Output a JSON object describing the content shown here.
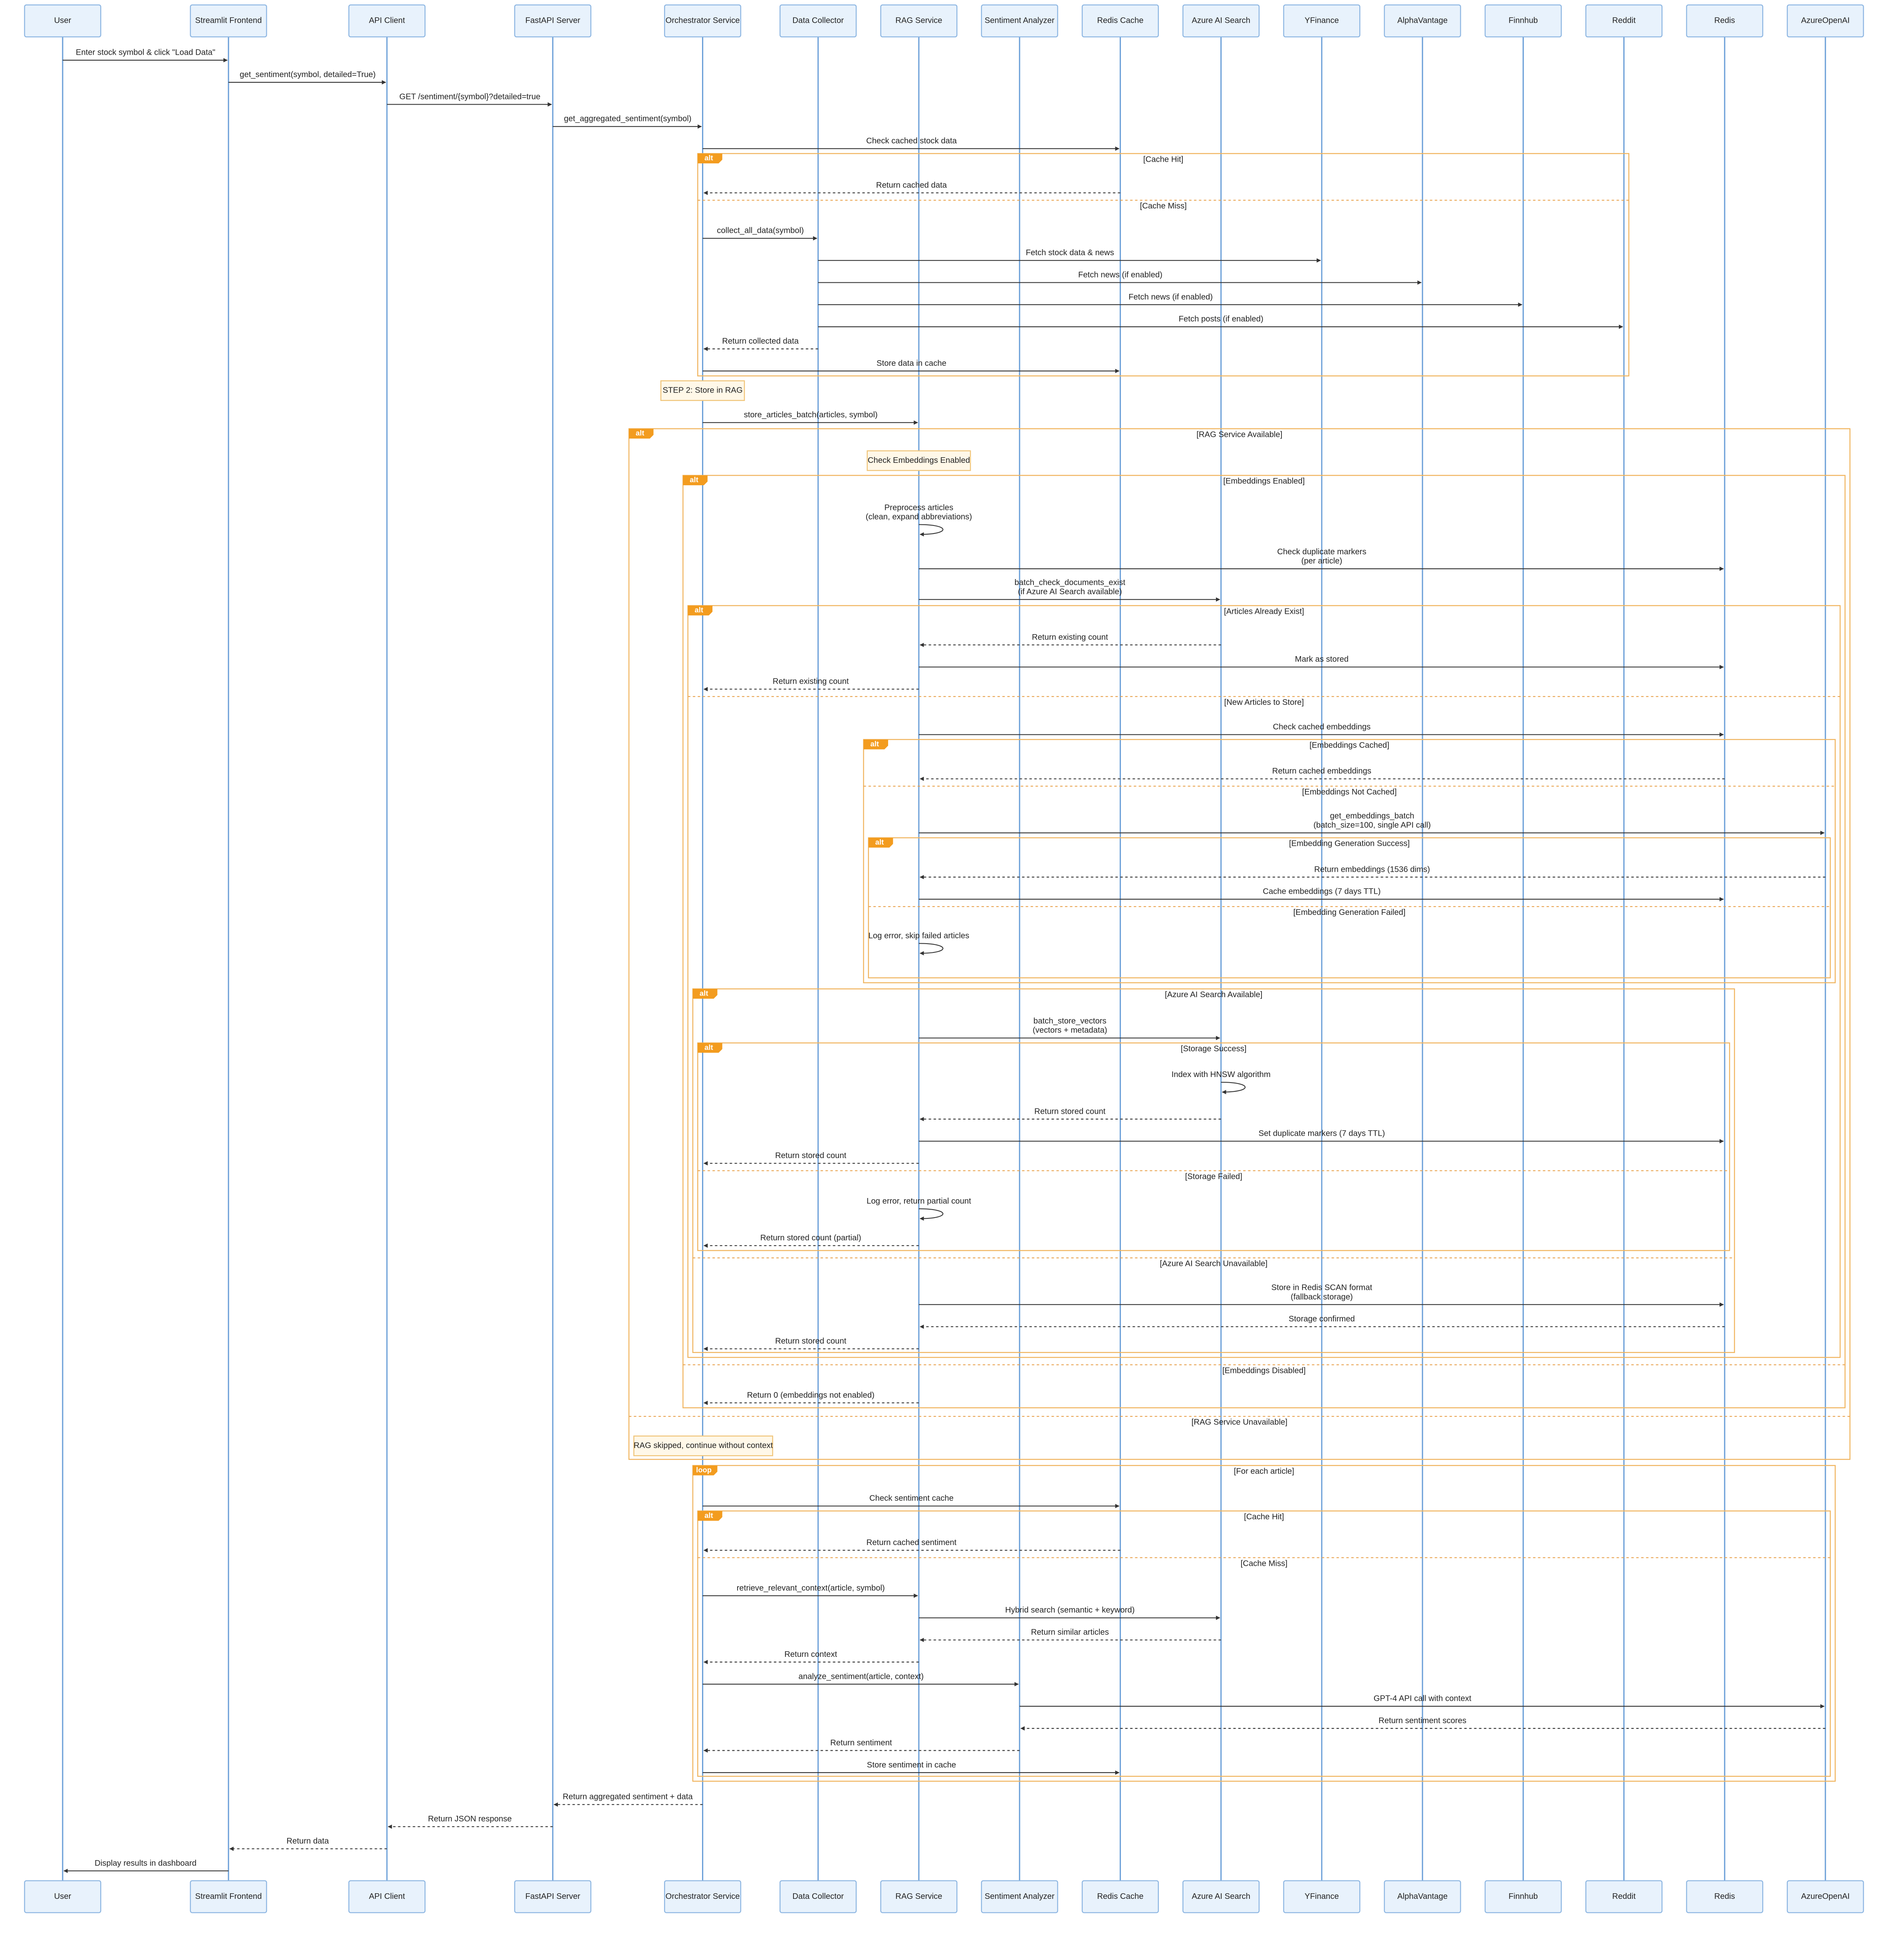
{
  "participants": [
    "User",
    "Streamlit Frontend",
    "API Client",
    "FastAPI Server",
    "Orchestrator Service",
    "Data Collector",
    "RAG Service",
    "Sentiment Analyzer",
    "Redis Cache",
    "Azure AI Search",
    "YFinance",
    "AlphaVantage",
    "Finnhub",
    "Reddit",
    "Redis",
    "AzureOpenAI"
  ],
  "messages": [
    {
      "lines": [
        "Enter stock symbol & click \"Load Data\""
      ]
    },
    {
      "lines": [
        "get_sentiment(symbol, detailed=True)"
      ]
    },
    {
      "lines": [
        "GET /sentiment/{symbol}?detailed=true"
      ]
    },
    {
      "lines": [
        "get_aggregated_sentiment(symbol)"
      ]
    },
    {
      "lines": [
        "Check cached stock data"
      ]
    },
    {
      "lines": [
        "Return cached data"
      ]
    },
    {
      "lines": [
        "collect_all_data(symbol)"
      ]
    },
    {
      "lines": [
        "Fetch stock data & news"
      ]
    },
    {
      "lines": [
        "Fetch news (if enabled)"
      ]
    },
    {
      "lines": [
        "Fetch news (if enabled)"
      ]
    },
    {
      "lines": [
        "Fetch posts (if enabled)"
      ]
    },
    {
      "lines": [
        "Return collected data"
      ]
    },
    {
      "lines": [
        "Store data in cache"
      ]
    },
    {
      "lines": [
        "store_articles_batch(articles, symbol)"
      ]
    },
    {
      "lines": [
        "Preprocess articles",
        "(clean, expand abbreviations)"
      ]
    },
    {
      "lines": [
        "Check duplicate markers",
        "(per article)"
      ]
    },
    {
      "lines": [
        "batch_check_documents_exist",
        "(if Azure AI Search available)"
      ]
    },
    {
      "lines": [
        "Return existing count"
      ]
    },
    {
      "lines": [
        "Mark as stored"
      ]
    },
    {
      "lines": [
        "Return existing count"
      ]
    },
    {
      "lines": [
        "Check cached embeddings"
      ]
    },
    {
      "lines": [
        "Return cached embeddings"
      ]
    },
    {
      "lines": [
        "get_embeddings_batch",
        "(batch_size=100, single API call)"
      ]
    },
    {
      "lines": [
        "Return embeddings (1536 dims)"
      ]
    },
    {
      "lines": [
        "Cache embeddings (7 days TTL)"
      ]
    },
    {
      "lines": [
        "Log error, skip failed articles"
      ]
    },
    {
      "lines": [
        "batch_store_vectors",
        "(vectors + metadata)"
      ]
    },
    {
      "lines": [
        "Index with HNSW algorithm"
      ]
    },
    {
      "lines": [
        "Return stored count"
      ]
    },
    {
      "lines": [
        "Set duplicate markers (7 days TTL)"
      ]
    },
    {
      "lines": [
        "Return stored count"
      ]
    },
    {
      "lines": [
        "Log error, return partial count"
      ]
    },
    {
      "lines": [
        "Return stored count (partial)"
      ]
    },
    {
      "lines": [
        "Store in Redis SCAN format",
        "(fallback storage)"
      ]
    },
    {
      "lines": [
        "Storage confirmed"
      ]
    },
    {
      "lines": [
        "Return stored count"
      ]
    },
    {
      "lines": [
        "Return 0 (embeddings not enabled)"
      ]
    },
    {
      "lines": [
        "Check sentiment cache"
      ]
    },
    {
      "lines": [
        "Return cached sentiment"
      ]
    },
    {
      "lines": [
        "retrieve_relevant_context(article, symbol)"
      ]
    },
    {
      "lines": [
        "Hybrid search (semantic + keyword)"
      ]
    },
    {
      "lines": [
        "Return similar articles"
      ]
    },
    {
      "lines": [
        "Return context"
      ]
    },
    {
      "lines": [
        "analyze_sentiment(article, context)"
      ]
    },
    {
      "lines": [
        "GPT-4 API call with context"
      ]
    },
    {
      "lines": [
        "Return sentiment scores"
      ]
    },
    {
      "lines": [
        "Return sentiment"
      ]
    },
    {
      "lines": [
        "Store sentiment in cache"
      ]
    },
    {
      "lines": [
        "Return aggregated sentiment + data"
      ]
    },
    {
      "lines": [
        "Return JSON response"
      ]
    },
    {
      "lines": [
        "Return data"
      ]
    },
    {
      "lines": [
        "Display results in dashboard"
      ]
    }
  ],
  "notes": [
    "STEP 2: Store in RAG",
    "Check Embeddings Enabled",
    "RAG skipped, continue without context"
  ],
  "frames": [
    {
      "keyword": "alt",
      "sections": [
        "[Cache Hit]",
        "[Cache Miss]"
      ]
    },
    {
      "keyword": "alt",
      "sections": [
        "[RAG Service Available]",
        "[RAG Service Unavailable]"
      ]
    },
    {
      "keyword": "alt",
      "sections": [
        "[Embeddings Enabled]",
        "[Embeddings Disabled]"
      ]
    },
    {
      "keyword": "alt",
      "sections": [
        "[Articles Already Exist]",
        "[New Articles to Store]"
      ]
    },
    {
      "keyword": "alt",
      "sections": [
        "[Embeddings Cached]",
        "[Embeddings Not Cached]"
      ]
    },
    {
      "keyword": "alt",
      "sections": [
        "[Embedding Generation Success]",
        "[Embedding Generation Failed]"
      ]
    },
    {
      "keyword": "alt",
      "sections": [
        "[Azure AI Search Available]",
        "[Azure AI Search Unavailable]"
      ]
    },
    {
      "keyword": "alt",
      "sections": [
        "[Storage Success]",
        "[Storage Failed]"
      ]
    },
    {
      "keyword": "loop",
      "sections": [
        "[For each article]"
      ]
    },
    {
      "keyword": "alt",
      "sections": [
        "[Cache Hit]",
        "[Cache Miss]"
      ]
    }
  ]
}
